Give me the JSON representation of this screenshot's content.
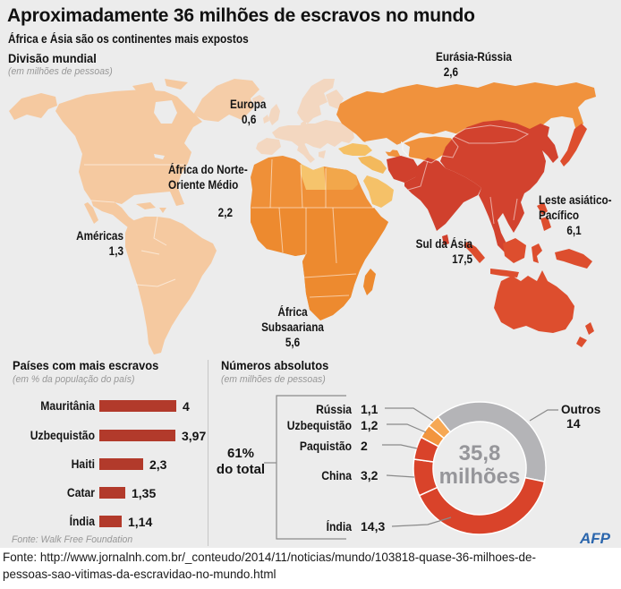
{
  "title": "Aproximadamente 36 milhões de escravos no mundo",
  "subtitle": "África e Ásia são os continentes mais expostos",
  "map": {
    "heading": "Divisão mundial",
    "heading_note": "(em milhões de pessoas)",
    "regions": [
      {
        "name": "Eurásia-Rússia",
        "value": "2,6"
      },
      {
        "name": "Europa",
        "value": "0,6"
      },
      {
        "name": "África do Norte-\nOriente Médio",
        "value": "2,2"
      },
      {
        "name": "Américas",
        "value": "1,3"
      },
      {
        "name": "África\nSubsaariana",
        "value": "5,6"
      },
      {
        "name": "Sul da Ásia",
        "value": "17,5"
      },
      {
        "name": "Leste asiático-\nPacífico",
        "value": "6,1"
      }
    ],
    "colors": {
      "americas": "#f5c9a0",
      "greenland": "#f5cda8",
      "europe": "#f3d7c0",
      "russia": "#f0923d",
      "turkey": "#f5c065",
      "levant": "#f3b95c",
      "saudi": "#f5c168",
      "libya": "#f6c46c",
      "egypt": "#f2a74b",
      "africa": "#ef9038",
      "subsahara": "#ed8a2f",
      "south_asia": "#d0402d",
      "east_asia": "#d2422e",
      "pacific": "#dd4e2e"
    }
  },
  "bar_panel": {
    "heading": "Países com mais escravos",
    "heading_note": "(em % da população do país)",
    "bars": [
      {
        "label": "Mauritânia",
        "display": "4",
        "value": 4
      },
      {
        "label": "Uzbequistão",
        "display": "3,97",
        "value": 3.97
      },
      {
        "label": "Haiti",
        "display": "2,3",
        "value": 2.3
      },
      {
        "label": "Catar",
        "display": "1,35",
        "value": 1.35
      },
      {
        "label": "Índia",
        "display": "1,14",
        "value": 1.14
      }
    ],
    "source": "Fonte: Walk Free Foundation"
  },
  "donut_panel": {
    "heading": "Números absolutos",
    "heading_note": "(em milhões de pessoas)",
    "share_label": "61%\ndo total",
    "center_line1": "35,8",
    "center_line2": "milhões",
    "slices": [
      {
        "label": "Rússia",
        "display": "1,1",
        "value": 1.1,
        "color": "#f6a854"
      },
      {
        "label": "Uzbequistão",
        "display": "1,2",
        "value": 1.2,
        "color": "#f2953e"
      },
      {
        "label": "Paquistão",
        "display": "2",
        "value": 2,
        "color": "#d9432a"
      },
      {
        "label": "China",
        "display": "3,2",
        "value": 3.2,
        "color": "#d9432a"
      },
      {
        "label": "Índia",
        "display": "14,3",
        "value": 14.3,
        "color": "#d9432a"
      },
      {
        "label": "Outros",
        "display": "14",
        "value": 14,
        "color": "#b4b4b7"
      }
    ],
    "draw_order": [
      5,
      4,
      3,
      2,
      1,
      0
    ],
    "start_angle": -39,
    "gray": "#b4b4b7"
  },
  "credit": "AFP",
  "footer_lines": "Fonte:  http://www.jornalnh.com.br/_conteudo/2014/11/noticias/mundo/103818-quase-36-milhoes-de-\npessoas-sao-vitimas-da-escravidao-no-mundo.html",
  "chart_data": [
    {
      "type": "map",
      "title": "Divisão mundial (em milhões de pessoas)",
      "regions": [
        "Américas",
        "Europa",
        "Eurásia-Rússia",
        "África do Norte-Oriente Médio",
        "África Subsaariana",
        "Sul da Ásia",
        "Leste asiático-Pacífico"
      ],
      "values": [
        1.3,
        0.6,
        2.6,
        2.2,
        5.6,
        17.5,
        6.1
      ]
    },
    {
      "type": "bar",
      "title": "Países com mais escravos (em % da população do país)",
      "categories": [
        "Mauritânia",
        "Uzbequistão",
        "Haiti",
        "Catar",
        "Índia"
      ],
      "values": [
        4,
        3.97,
        2.3,
        1.35,
        1.14
      ],
      "source": "Fonte: Walk Free Foundation"
    },
    {
      "type": "pie",
      "title": "Números absolutos (em milhões de pessoas)",
      "categories": [
        "Rússia",
        "Uzbequistão",
        "Paquistão",
        "China",
        "Índia",
        "Outros"
      ],
      "values": [
        1.1,
        1.2,
        2,
        3.2,
        14.3,
        14
      ],
      "center_label": "35,8 milhões",
      "annotation": "61% do total"
    }
  ]
}
